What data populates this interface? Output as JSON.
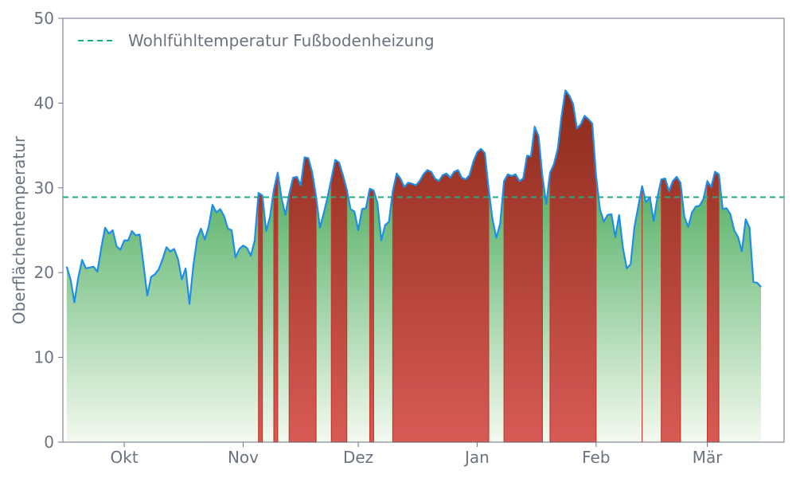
{
  "chart_data": {
    "type": "area",
    "title": "",
    "xlabel": "",
    "ylabel": "Oberflächentemperatur",
    "ylim": [
      0,
      50
    ],
    "yticks": [
      0,
      10,
      20,
      30,
      40,
      50
    ],
    "x_start": "2023-09-15",
    "x_end": "2024-03-21",
    "xticks": [
      {
        "date": "2023-10-01",
        "label": "Okt"
      },
      {
        "date": "2023-11-01",
        "label": "Nov"
      },
      {
        "date": "2023-12-01",
        "label": "Dez"
      },
      {
        "date": "2024-01-01",
        "label": "Jan"
      },
      {
        "date": "2024-02-01",
        "label": "Feb"
      },
      {
        "date": "2024-03-01",
        "label": "Mär"
      }
    ],
    "threshold": {
      "name": "Wohlfühltemperatur Fußbodenheizung",
      "value": 28.9
    },
    "legend": "top-left",
    "grid": false,
    "colors": {
      "line": "#1f8ee6",
      "threshold": "#1aae80",
      "above_top": "#8a2a1a",
      "above_bottom": "#d75a55",
      "below_top": "#5eb56e",
      "below_bottom": "#f3f9ef",
      "axis": "#6b7280"
    },
    "series": [
      {
        "start": "2023-09-16",
        "values": [
          20.7,
          19.2,
          16.5,
          19.4,
          21.5,
          20.5,
          20.6,
          20.7,
          20.1,
          22.9,
          25.3,
          24.6,
          25.0,
          23.1,
          22.7,
          23.8,
          23.8,
          24.9,
          24.4,
          24.5,
          21.0,
          17.3,
          19.5,
          19.8,
          20.4,
          21.6,
          23.0,
          22.5,
          22.8,
          21.6,
          19.2,
          20.5,
          16.3,
          20.8,
          24.0,
          25.2,
          23.9,
          25.4,
          28.0,
          27.1,
          27.5,
          26.7,
          25.2,
          25.0,
          21.8,
          22.8,
          23.2,
          22.9,
          22.0,
          23.8,
          29.4,
          29.1,
          24.9,
          26.6,
          29.8,
          31.8,
          28.8,
          26.8,
          29.3,
          31.2,
          31.3,
          30.3,
          33.6,
          33.5,
          31.8,
          29.0,
          25.3,
          27.0,
          28.9,
          31.1,
          33.3,
          33.0,
          31.5,
          29.8,
          27.5,
          27.2,
          25.0,
          27.5,
          27.6,
          29.9,
          29.7,
          28.2,
          23.8,
          25.6,
          26.0,
          29.6,
          31.7,
          31.1,
          30.1,
          30.6,
          30.5,
          30.3,
          30.8,
          31.6,
          32.1,
          31.9,
          31.1,
          30.8,
          31.5,
          31.7,
          31.2,
          31.9,
          32.1,
          31.2,
          31.0,
          31.5,
          33.1,
          34.2,
          34.6,
          34.1,
          29.8,
          26.3,
          24.1,
          25.8,
          30.8,
          31.6,
          31.4,
          31.6,
          30.8,
          31.1,
          33.8,
          33.7,
          37.2,
          36.1,
          31.4,
          28.1,
          31.8,
          32.8,
          34.6,
          38.5,
          41.5,
          40.9,
          39.9,
          37.0,
          37.5,
          38.5,
          38.1,
          37.6,
          31.4,
          27.5,
          26.0,
          26.8,
          26.9,
          24.2,
          26.8,
          22.9,
          20.5,
          21.0,
          25.4,
          27.8,
          30.2,
          28.3,
          28.9,
          26.1,
          28.9,
          31.0,
          31.1,
          29.6,
          30.8,
          31.3,
          30.6,
          26.6,
          25.4,
          27.1,
          27.8,
          27.9,
          28.7,
          30.8,
          30.1,
          31.9,
          31.6,
          27.5,
          27.6,
          26.9,
          25.0,
          24.2,
          22.5,
          26.3,
          25.3,
          18.9,
          18.8,
          18.3
        ]
      }
    ]
  }
}
